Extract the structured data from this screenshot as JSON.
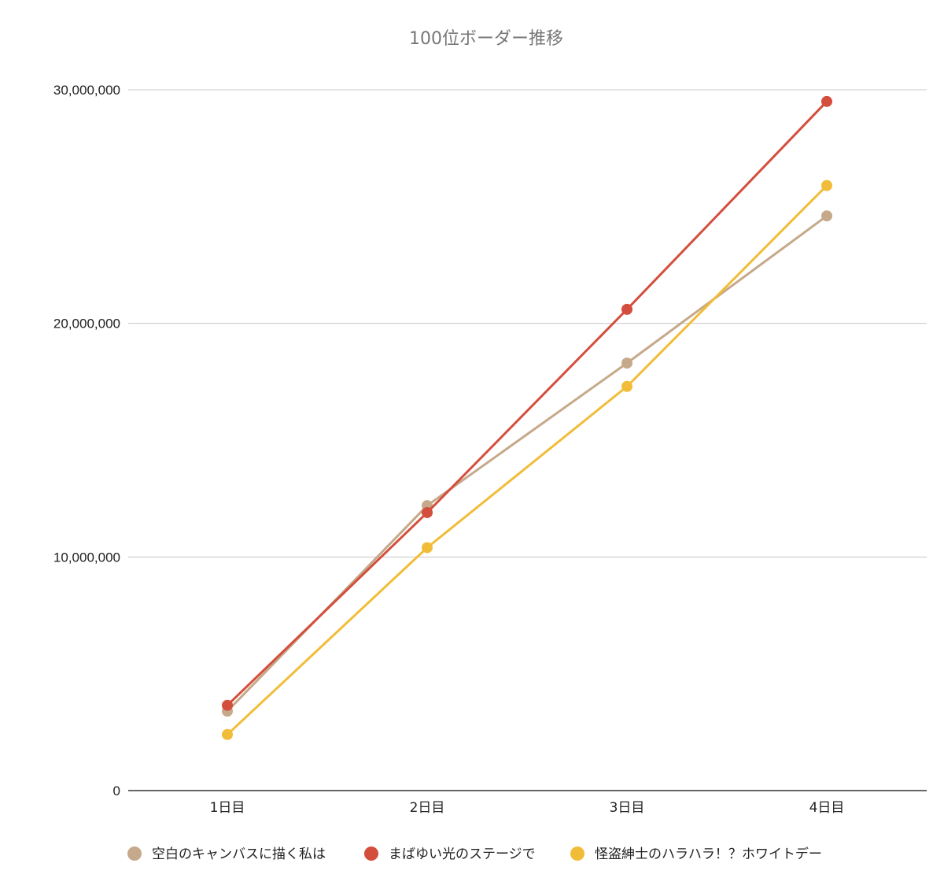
{
  "chart_data": {
    "type": "line",
    "title": "100位ボーダー推移",
    "categories": [
      "1日目",
      "2日目",
      "3日目",
      "4日目"
    ],
    "y_ticks": [
      "0",
      "10,000,000",
      "20,000,000",
      "30,000,000"
    ],
    "ylim": [
      0,
      30000000
    ],
    "grid": true,
    "legend_position": "bottom",
    "series": [
      {
        "name": "空白のキャンバスに描く私は",
        "color": "#c5a98a",
        "values": [
          3400000,
          12200000,
          18300000,
          24600000
        ]
      },
      {
        "name": "まばゆい光のステージで",
        "color": "#d44e3d",
        "values": [
          3650000,
          11900000,
          20600000,
          29500000
        ]
      },
      {
        "name": "怪盗紳士のハラハラ！？ホワイトデー",
        "color": "#f1bd39",
        "values": [
          2400000,
          10400000,
          17300000,
          25900000
        ]
      }
    ]
  }
}
